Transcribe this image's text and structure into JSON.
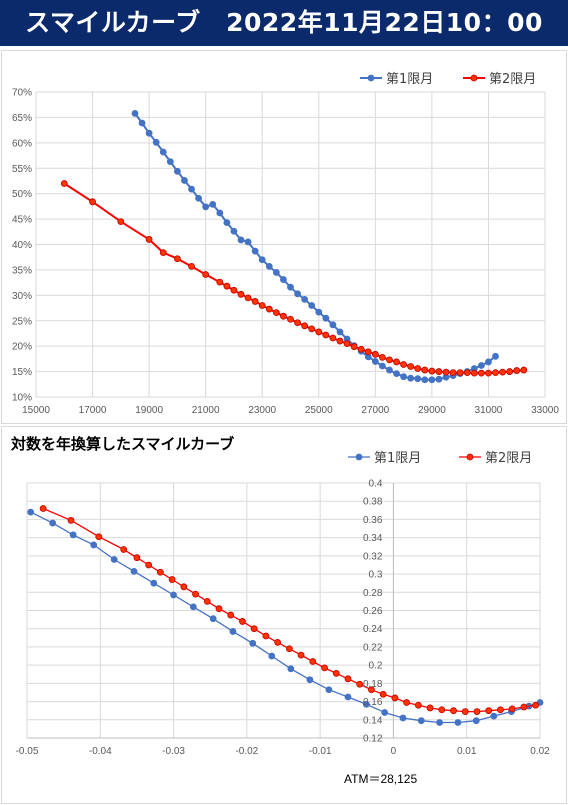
{
  "header": {
    "title": "スマイルカーブ　2022年11月22日10：00"
  },
  "colors": {
    "series1": "#4472c4",
    "series2": "#ff0000",
    "series2_fill": "#ff3300",
    "grid": "#d9d9d9",
    "header_bg": "#0b2a6b"
  },
  "chart_data": [
    {
      "type": "line",
      "title": "",
      "xlim": [
        15000,
        33000
      ],
      "ylim": [
        10,
        70
      ],
      "x_ticks": [
        "15000",
        "17000",
        "19000",
        "21000",
        "23000",
        "25000",
        "27000",
        "29000",
        "31000",
        "33000"
      ],
      "y_ticks": [
        "10%",
        "15%",
        "20%",
        "25%",
        "30%",
        "35%",
        "40%",
        "45%",
        "50%",
        "55%",
        "60%",
        "65%",
        "70%"
      ],
      "legend_position": "top-right",
      "grid": true,
      "series": [
        {
          "name": "第1限月",
          "x": [
            18500,
            18750,
            19000,
            19250,
            19500,
            19750,
            20000,
            20250,
            20500,
            20750,
            21000,
            21250,
            21500,
            21750,
            22000,
            22250,
            22500,
            22750,
            23000,
            23250,
            23500,
            23750,
            24000,
            24250,
            24500,
            24750,
            25000,
            25250,
            25500,
            25750,
            26000,
            26250,
            26500,
            26750,
            27000,
            27250,
            27500,
            27750,
            28000,
            28250,
            28500,
            28750,
            29000,
            29250,
            29500,
            29750,
            30000,
            30250,
            30500,
            30750,
            31000,
            31250
          ],
          "values": [
            65.8,
            63.9,
            61.9,
            60.1,
            58.2,
            56.3,
            54.4,
            52.6,
            50.9,
            49.1,
            47.4,
            47.9,
            46.2,
            44.3,
            42.6,
            40.9,
            40.5,
            38.7,
            37.0,
            35.7,
            34.5,
            33.1,
            31.6,
            30.3,
            29.2,
            28.0,
            26.7,
            25.5,
            24.2,
            22.8,
            21.4,
            20.1,
            19.0,
            17.9,
            17.0,
            16.1,
            15.3,
            14.6,
            14.0,
            13.7,
            13.6,
            13.4,
            13.4,
            13.5,
            13.9,
            14.2,
            14.6,
            15.0,
            15.6,
            16.2,
            16.9,
            18.0
          ]
        },
        {
          "name": "第2限月",
          "x": [
            16000,
            17000,
            18000,
            19000,
            19500,
            20000,
            20500,
            21000,
            21500,
            21750,
            22000,
            22250,
            22500,
            22750,
            23000,
            23250,
            23500,
            23750,
            24000,
            24250,
            24500,
            24750,
            25000,
            25250,
            25500,
            25750,
            26000,
            26250,
            26500,
            26750,
            27000,
            27250,
            27500,
            27750,
            28000,
            28250,
            28500,
            28750,
            29000,
            29250,
            29500,
            29750,
            30000,
            30250,
            30500,
            30750,
            31000,
            31250,
            31500,
            31750,
            32000,
            32250
          ],
          "values": [
            52.0,
            48.4,
            44.5,
            41.0,
            38.4,
            37.2,
            35.7,
            34.1,
            32.6,
            31.8,
            31.0,
            30.2,
            29.5,
            28.8,
            28.0,
            27.3,
            26.6,
            25.9,
            25.3,
            24.6,
            24.0,
            23.4,
            22.8,
            22.2,
            21.6,
            21.0,
            20.5,
            19.9,
            19.4,
            18.9,
            18.4,
            17.8,
            17.3,
            16.9,
            16.4,
            16.0,
            15.6,
            15.3,
            15.1,
            15.0,
            14.9,
            14.8,
            14.8,
            14.8,
            14.7,
            14.7,
            14.7,
            14.8,
            14.9,
            15.0,
            15.2,
            15.3
          ]
        }
      ]
    },
    {
      "type": "line",
      "title": "対数を年換算したスマイルカーブ",
      "xlim": [
        -0.05,
        0.02
      ],
      "ylim": [
        0.12,
        0.4
      ],
      "x_ticks": [
        "-0.05",
        "-0.04",
        "-0.03",
        "-0.02",
        "-0.01",
        "0",
        "0.01",
        "0.02"
      ],
      "y_ticks": [
        "0.12",
        "0.14",
        "0.16",
        "0.18",
        "0.2",
        "0.22",
        "0.24",
        "0.26",
        "0.28",
        "0.3",
        "0.32",
        "0.34",
        "0.36",
        "0.38",
        "0.4"
      ],
      "legend_position": "top-right",
      "grid": true,
      "annotation": "ATM＝28,125",
      "series": [
        {
          "name": "第1限月",
          "x": [
            -0.0495,
            -0.0465,
            -0.0437,
            -0.0409,
            -0.0381,
            -0.0354,
            -0.0327,
            -0.03,
            -0.0273,
            -0.0246,
            -0.0219,
            -0.0192,
            -0.0166,
            -0.014,
            -0.0114,
            -0.0088,
            -0.0062,
            -0.0037,
            -0.0012,
            0.0013,
            0.0038,
            0.0063,
            0.0088,
            0.0113,
            0.0137,
            0.0161,
            0.0185,
            0.02
          ],
          "values": [
            0.368,
            0.356,
            0.343,
            0.332,
            0.316,
            0.303,
            0.29,
            0.277,
            0.264,
            0.251,
            0.237,
            0.224,
            0.21,
            0.196,
            0.184,
            0.173,
            0.165,
            0.157,
            0.148,
            0.142,
            0.139,
            0.137,
            0.137,
            0.139,
            0.144,
            0.149,
            0.155,
            0.159
          ]
        },
        {
          "name": "第2限月",
          "x": [
            -0.0478,
            -0.044,
            -0.0402,
            -0.0368,
            -0.035,
            -0.0334,
            -0.0318,
            -0.0302,
            -0.0286,
            -0.027,
            -0.0254,
            -0.0238,
            -0.0222,
            -0.0206,
            -0.019,
            -0.0174,
            -0.0158,
            -0.0142,
            -0.0126,
            -0.011,
            -0.0094,
            -0.0078,
            -0.0062,
            -0.0046,
            -0.003,
            -0.0014,
            0.0002,
            0.0018,
            0.0034,
            0.005,
            0.0066,
            0.0082,
            0.0098,
            0.0114,
            0.013,
            0.0146,
            0.0162,
            0.0178,
            0.0194
          ],
          "values": [
            0.372,
            0.359,
            0.341,
            0.327,
            0.318,
            0.31,
            0.302,
            0.294,
            0.286,
            0.278,
            0.27,
            0.262,
            0.255,
            0.248,
            0.24,
            0.232,
            0.225,
            0.218,
            0.211,
            0.204,
            0.197,
            0.191,
            0.185,
            0.179,
            0.173,
            0.168,
            0.164,
            0.159,
            0.156,
            0.153,
            0.151,
            0.15,
            0.149,
            0.149,
            0.15,
            0.151,
            0.152,
            0.154,
            0.156
          ]
        }
      ]
    }
  ]
}
